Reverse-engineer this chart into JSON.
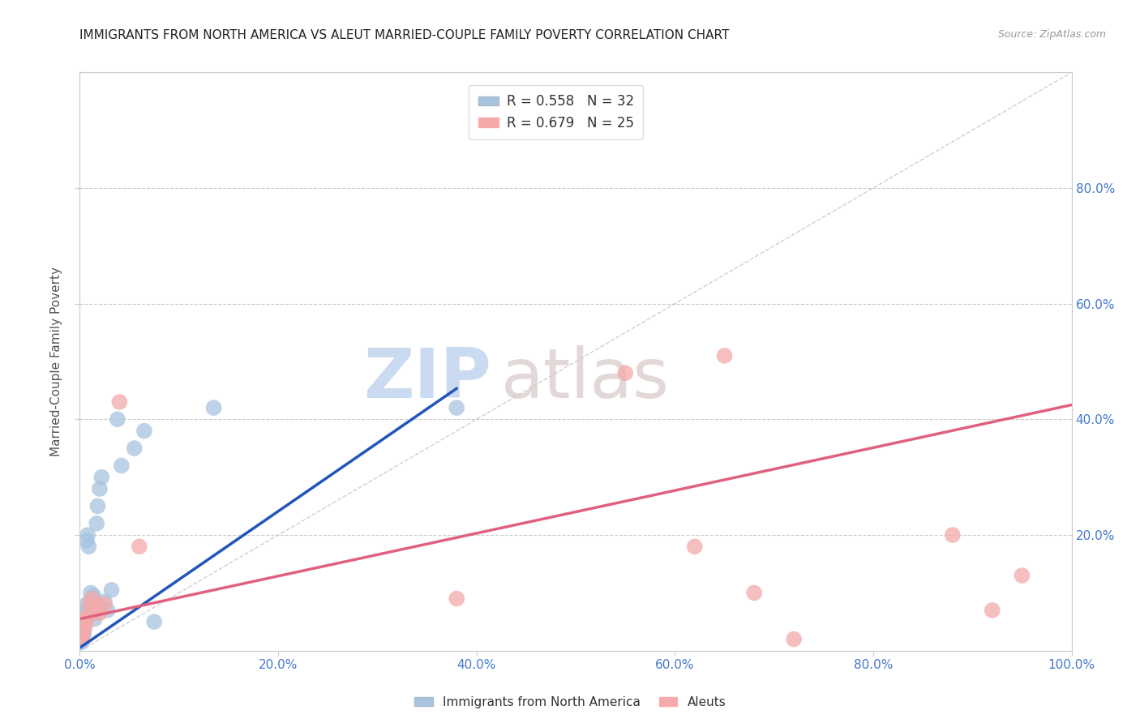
{
  "title": "IMMIGRANTS FROM NORTH AMERICA VS ALEUT MARRIED-COUPLE FAMILY POVERTY CORRELATION CHART",
  "source": "Source: ZipAtlas.com",
  "ylabel": "Married-Couple Family Poverty",
  "watermark_zip": "ZIP",
  "watermark_atlas": "atlas",
  "xlim": [
    0,
    1.0
  ],
  "ylim": [
    0,
    1.0
  ],
  "xtick_positions": [
    0.0,
    0.2,
    0.4,
    0.6,
    0.8,
    1.0
  ],
  "xtick_labels": [
    "0.0%",
    "20.0%",
    "40.0%",
    "60.0%",
    "80.0%",
    "100.0%"
  ],
  "ytick_positions": [
    0.2,
    0.4,
    0.6,
    0.8
  ],
  "ytick_labels": [
    "20.0%",
    "40.0%",
    "60.0%",
    "80.0%"
  ],
  "legend_r1": "R = 0.558",
  "legend_n1": "N = 32",
  "legend_r2": "R = 0.679",
  "legend_n2": "N = 25",
  "color_blue_fill": "#A8C4E0",
  "color_blue_edge": "#7AAAD0",
  "color_pink_fill": "#F4AAAA",
  "color_pink_edge": "#E88888",
  "color_blue_line": "#2255BB",
  "color_pink_line": "#E06080",
  "color_diag": "#BBBBBB",
  "color_tick": "#4477CC",
  "legend_label1": "Immigrants from North America",
  "legend_label2": "Aleuts",
  "blue_x": [
    0.001,
    0.002,
    0.003,
    0.004,
    0.005,
    0.005,
    0.006,
    0.007,
    0.007,
    0.008,
    0.009,
    0.01,
    0.011,
    0.012,
    0.013,
    0.014,
    0.015,
    0.016,
    0.017,
    0.018,
    0.02,
    0.022,
    0.025,
    0.028,
    0.032,
    0.038,
    0.042,
    0.055,
    0.065,
    0.075,
    0.135,
    0.38
  ],
  "blue_y": [
    0.02,
    0.015,
    0.025,
    0.03,
    0.04,
    0.06,
    0.07,
    0.08,
    0.19,
    0.2,
    0.18,
    0.085,
    0.1,
    0.075,
    0.09,
    0.095,
    0.055,
    0.065,
    0.22,
    0.25,
    0.28,
    0.3,
    0.085,
    0.07,
    0.105,
    0.4,
    0.32,
    0.35,
    0.38,
    0.05,
    0.42,
    0.42
  ],
  "pink_x": [
    0.001,
    0.002,
    0.003,
    0.004,
    0.005,
    0.006,
    0.007,
    0.008,
    0.01,
    0.012,
    0.015,
    0.018,
    0.02,
    0.025,
    0.04,
    0.06,
    0.38,
    0.55,
    0.62,
    0.65,
    0.68,
    0.72,
    0.88,
    0.92,
    0.95
  ],
  "pink_y": [
    0.02,
    0.025,
    0.03,
    0.04,
    0.045,
    0.05,
    0.055,
    0.06,
    0.08,
    0.09,
    0.07,
    0.08,
    0.065,
    0.08,
    0.43,
    0.18,
    0.09,
    0.48,
    0.18,
    0.51,
    0.1,
    0.02,
    0.2,
    0.07,
    0.13
  ],
  "blue_intercept": 0.005,
  "blue_slope": 1.18,
  "pink_intercept": 0.055,
  "pink_slope": 0.37
}
